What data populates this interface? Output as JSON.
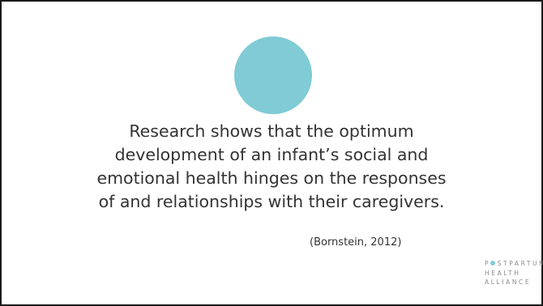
{
  "slide": {
    "accent_color": "#80cbd5",
    "quote_lines": [
      "Research shows that the optimum",
      "development of an infant’s social and",
      "emotional health hinges on the responses",
      "of and relationships with their caregivers."
    ],
    "citation": "(Bornstein, 2012)"
  },
  "logo": {
    "line1_rest": "STPARTUM",
    "line2": "HEALTH",
    "line3": "ALLIANCE",
    "dot_color": "#80cbd5"
  }
}
